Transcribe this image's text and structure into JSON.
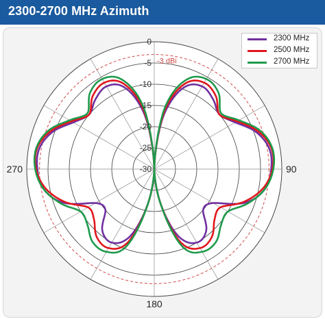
{
  "header": {
    "title": "2300-2700 MHz Azimuth"
  },
  "legend": {
    "items": [
      {
        "label": "2300 MHz",
        "color": "#7030a0"
      },
      {
        "label": "2500 MHz",
        "color": "#e0161c"
      },
      {
        "label": "2700 MHz",
        "color": "#1e9a4c"
      }
    ]
  },
  "chart_data": {
    "type": "polar",
    "title": "2300-2700 MHz Azimuth",
    "radial_axis": {
      "range": [
        -30,
        0
      ],
      "ticks": [
        0,
        -5,
        -10,
        -15,
        -20,
        -25,
        -30
      ],
      "tick_labels": [
        "0",
        "-5",
        "-10",
        "-15",
        "-20",
        "-25",
        "-30"
      ],
      "reference_circle": {
        "value": -3,
        "label": "-3 dBi",
        "color": "#d04a4a",
        "style": "dashed"
      }
    },
    "angular_axis": {
      "labels": [
        {
          "angle": 90,
          "text": "90"
        },
        {
          "angle": 180,
          "text": "180"
        },
        {
          "angle": 270,
          "text": "270"
        }
      ],
      "zero_direction": "top",
      "direction": "clockwise"
    },
    "grid": true,
    "legend_position": "top-right",
    "angles": [
      0,
      10,
      20,
      30,
      40,
      50,
      60,
      70,
      80,
      90,
      100,
      110,
      120,
      130,
      140,
      150,
      160,
      170,
      180,
      190,
      200,
      210,
      220,
      230,
      240,
      250,
      260,
      270,
      280,
      290,
      300,
      310,
      320,
      330,
      340,
      350
    ],
    "series": [
      {
        "name": "2300 MHz",
        "color": "#7030a0",
        "values": [
          -30,
          -17,
          -9.5,
          -7.5,
          -8.5,
          -10,
          -8,
          -4.5,
          -2.5,
          -2.5,
          -3.5,
          -7,
          -14,
          -15,
          -11,
          -10,
          -13,
          -22,
          -30,
          -22,
          -13,
          -10,
          -11,
          -15,
          -14,
          -7,
          -3.5,
          -2.5,
          -2.5,
          -4.5,
          -8,
          -10,
          -8.5,
          -7.5,
          -9.5,
          -17
        ]
      },
      {
        "name": "2500 MHz",
        "color": "#e0161c",
        "values": [
          -30,
          -16,
          -8.5,
          -6.5,
          -7.5,
          -10,
          -7.5,
          -4,
          -2,
          -2.2,
          -4,
          -7.5,
          -12,
          -11.5,
          -9,
          -8.5,
          -11.5,
          -22,
          -30,
          -22,
          -11.5,
          -8.5,
          -9,
          -11.5,
          -12,
          -7.5,
          -4,
          -2.2,
          -2,
          -4,
          -7.5,
          -10,
          -7.5,
          -6.5,
          -8.5,
          -16
        ]
      },
      {
        "name": "2700 MHz",
        "color": "#1e9a4c",
        "values": [
          -30,
          -15,
          -7.5,
          -5.5,
          -6.5,
          -9.5,
          -7,
          -3.5,
          -1.8,
          -2,
          -3.5,
          -6.5,
          -10,
          -9.5,
          -7.5,
          -7.5,
          -10.5,
          -22,
          -30,
          -22,
          -10.5,
          -7.5,
          -7.5,
          -9.5,
          -10,
          -6.5,
          -3.5,
          -2,
          -1.8,
          -3.5,
          -7,
          -9.5,
          -6.5,
          -5.5,
          -7.5,
          -15
        ]
      }
    ]
  }
}
